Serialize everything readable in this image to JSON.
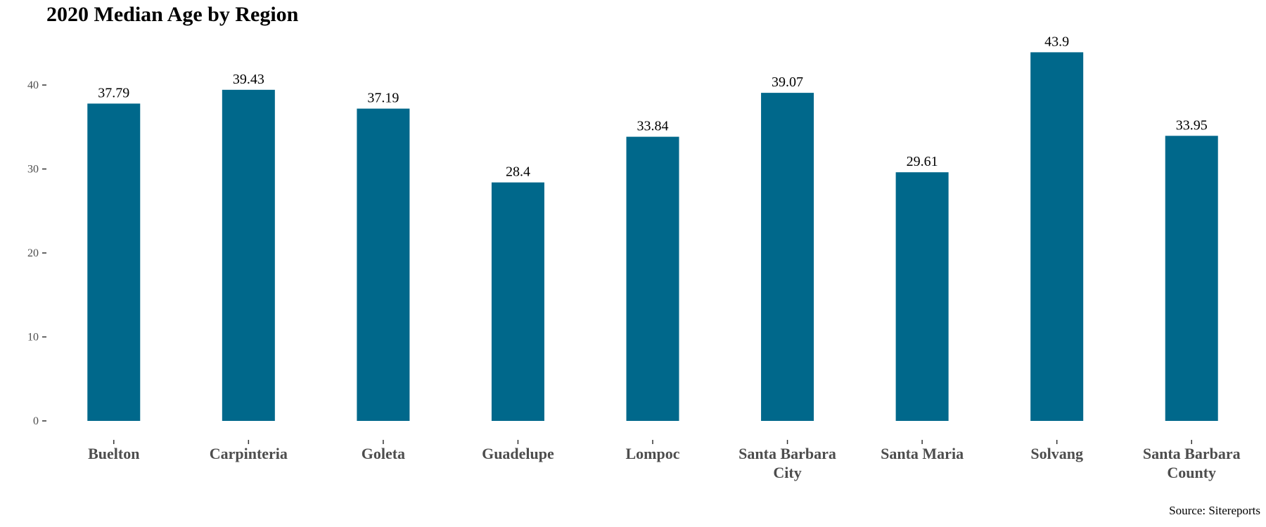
{
  "chart_data": {
    "type": "bar",
    "title": "2020 Median Age by Region",
    "xlabel": "",
    "ylabel": "",
    "categories": [
      [
        "Buelton"
      ],
      [
        "Carpinteria"
      ],
      [
        "Goleta"
      ],
      [
        "Guadelupe"
      ],
      [
        "Lompoc"
      ],
      [
        "Santa Barbara",
        "City"
      ],
      [
        "Santa Maria"
      ],
      [
        "Solvang"
      ],
      [
        "Santa Barbara",
        "County"
      ]
    ],
    "values": [
      37.79,
      39.43,
      37.19,
      28.4,
      33.84,
      39.07,
      29.61,
      43.9,
      33.95
    ],
    "data_labels": [
      "37.79",
      "39.43",
      "37.19",
      "28.4",
      "33.84",
      "39.07",
      "29.61",
      "43.9",
      "33.95"
    ],
    "yticks": [
      0,
      10,
      20,
      30,
      40
    ],
    "ylim": [
      0,
      45
    ],
    "grid": false,
    "legend": "none",
    "bar_color": "#00688b",
    "caption": "Source: Sitereports"
  }
}
